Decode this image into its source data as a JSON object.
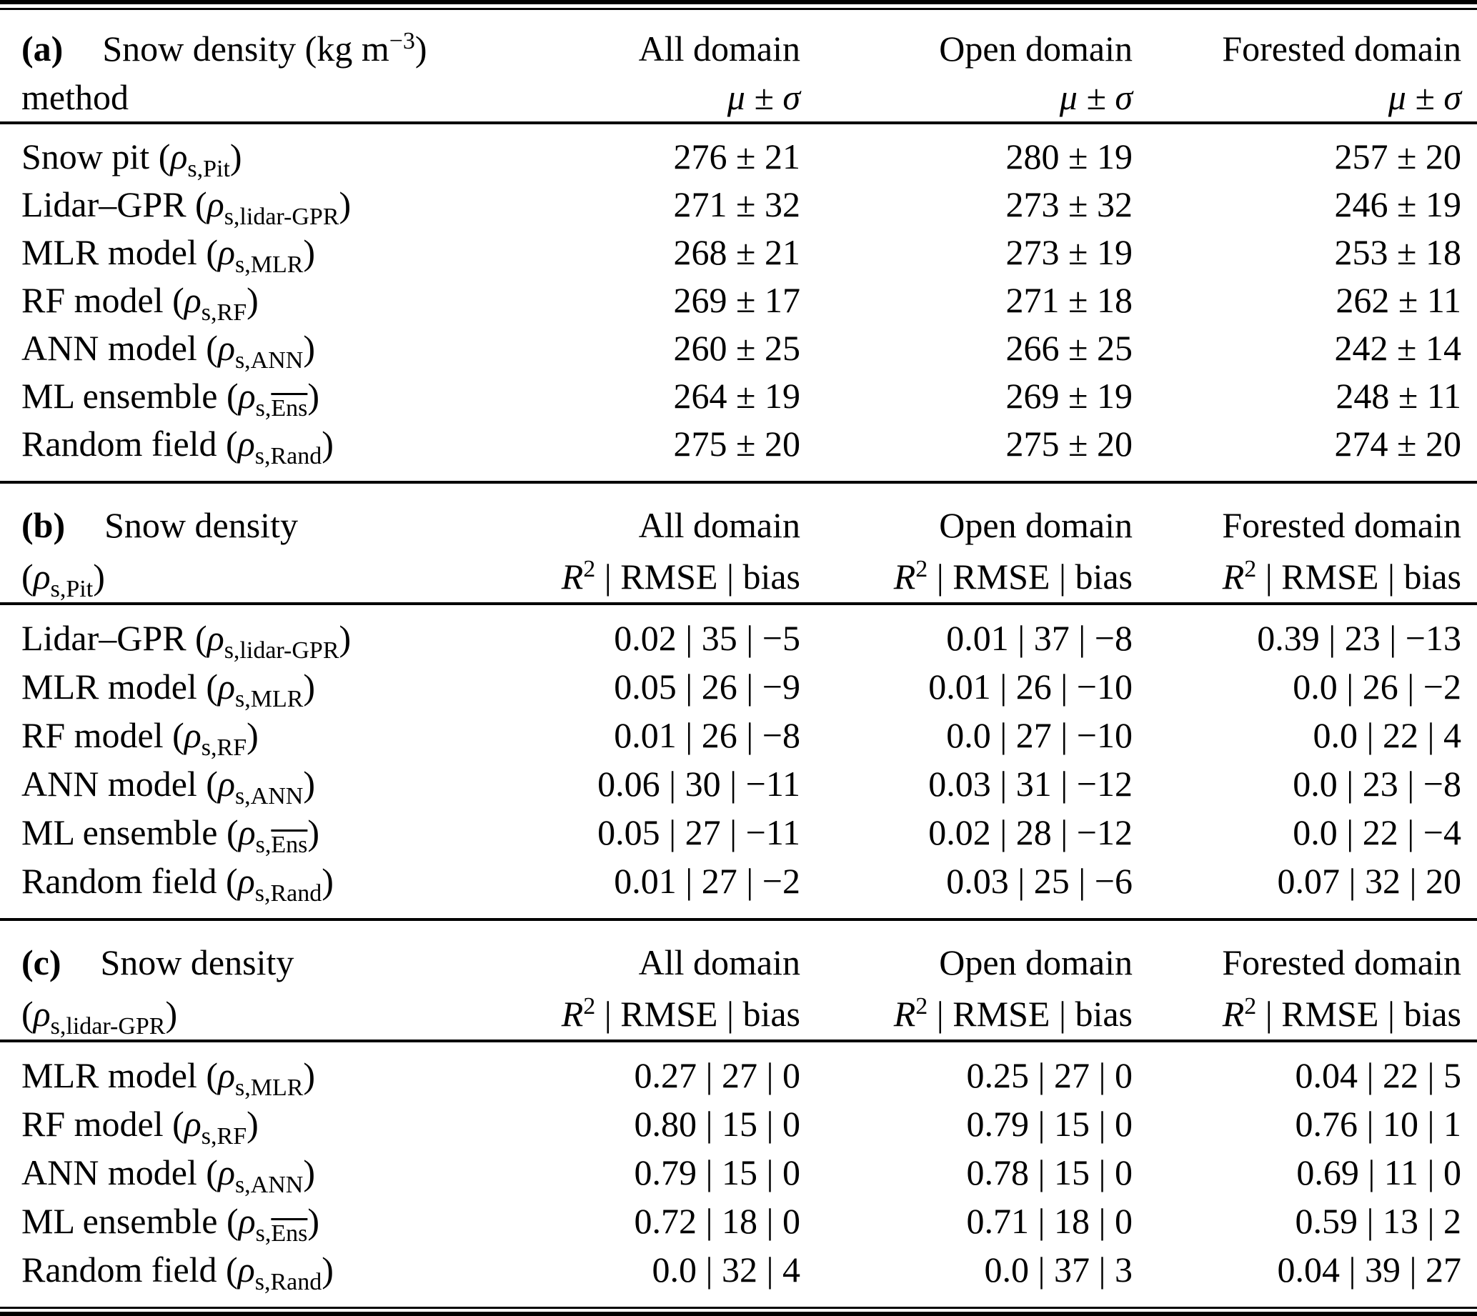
{
  "sections": [
    {
      "tag": "(a)",
      "title_pre": "Snow density (kg m",
      "title_sup": "−3",
      "title_post": ")",
      "sub_label": "method",
      "columns": [
        "All domain",
        "Open domain",
        "Forested domain"
      ],
      "metric": "μ ± σ",
      "rows": [
        {
          "name": "Snow pit (",
          "rho": "ρ",
          "sub": "s,Pit",
          "sub_ol": "",
          "close": ")",
          "values": [
            "276 ± 21",
            "280 ± 19",
            "257 ± 20"
          ]
        },
        {
          "name": "Lidar–GPR (",
          "rho": "ρ",
          "sub": "s,lidar-GPR",
          "sub_ol": "",
          "close": ")",
          "values": [
            "271 ± 32",
            "273 ± 32",
            "246 ± 19"
          ]
        },
        {
          "name": "MLR model (",
          "rho": "ρ",
          "sub": "s,MLR",
          "sub_ol": "",
          "close": ")",
          "values": [
            "268 ± 21",
            "273 ± 19",
            "253 ± 18"
          ]
        },
        {
          "name": "RF model (",
          "rho": "ρ",
          "sub": "s,RF",
          "sub_ol": "",
          "close": ")",
          "values": [
            "269 ± 17",
            "271 ± 18",
            "262 ± 11"
          ]
        },
        {
          "name": "ANN model (",
          "rho": "ρ",
          "sub": "s,ANN",
          "sub_ol": "",
          "close": ")",
          "values": [
            "260 ± 25",
            "266 ± 25",
            "242 ± 14"
          ]
        },
        {
          "name": "ML ensemble (",
          "rho": "ρ",
          "sub": "s,",
          "sub_ol": "Ens",
          "close": ")",
          "values": [
            "264 ± 19",
            "269 ± 19",
            "248 ± 11"
          ]
        },
        {
          "name": "Random field (",
          "rho": "ρ",
          "sub": "s,Rand",
          "sub_ol": "",
          "close": ")",
          "values": [
            "275 ± 20",
            "275 ± 20",
            "274 ± 20"
          ]
        }
      ]
    },
    {
      "tag": "(b)",
      "title_pre": "Snow density",
      "sub_open": "(",
      "rho": "ρ",
      "sub": "s,Pit",
      "sub_close": ")",
      "columns": [
        "All domain",
        "Open domain",
        "Forested domain"
      ],
      "metric_R": "R",
      "metric_exp": "2",
      "metric_rest": " | RMSE | bias",
      "rows": [
        {
          "name": "Lidar–GPR (",
          "rho": "ρ",
          "sub": "s,lidar-GPR",
          "sub_ol": "",
          "close": ")",
          "values": [
            "0.02 | 35 | −5",
            "0.01 | 37 | −8",
            "0.39 | 23 | −13"
          ]
        },
        {
          "name": "MLR model (",
          "rho": "ρ",
          "sub": "s,MLR",
          "sub_ol": "",
          "close": ")",
          "values": [
            "0.05 | 26 | −9",
            "0.01 | 26 | −10",
            "0.0 | 26 | −2"
          ]
        },
        {
          "name": "RF model (",
          "rho": "ρ",
          "sub": "s,RF",
          "sub_ol": "",
          "close": ")",
          "values": [
            "0.01 | 26 | −8",
            "0.0 | 27 | −10",
            "0.0 | 22 | 4"
          ]
        },
        {
          "name": "ANN model (",
          "rho": "ρ",
          "sub": "s,ANN",
          "sub_ol": "",
          "close": ")",
          "values": [
            "0.06 | 30 | −11",
            "0.03 | 31 | −12",
            "0.0 | 23 | −8"
          ]
        },
        {
          "name": "ML ensemble (",
          "rho": "ρ",
          "sub": "s,",
          "sub_ol": "Ens",
          "close": ")",
          "values": [
            "0.05 | 27 | −11",
            "0.02 | 28 | −12",
            "0.0 | 22 | −4"
          ]
        },
        {
          "name": "Random field (",
          "rho": "ρ",
          "sub": "s,Rand",
          "sub_ol": "",
          "close": ")",
          "values": [
            "0.01 | 27 | −2",
            "0.03 | 25 | −6",
            "0.07 | 32 | 20"
          ]
        }
      ]
    },
    {
      "tag": "(c)",
      "title_pre": "Snow density",
      "sub_open": "(",
      "rho": "ρ",
      "sub": "s,lidar-GPR",
      "sub_close": ")",
      "columns": [
        "All domain",
        "Open domain",
        "Forested domain"
      ],
      "metric_R": "R",
      "metric_exp": "2",
      "metric_rest": " | RMSE | bias",
      "rows": [
        {
          "name": "MLR model (",
          "rho": "ρ",
          "sub": "s,MLR",
          "sub_ol": "",
          "close": ")",
          "values": [
            "0.27 | 27 | 0",
            "0.25 | 27 | 0",
            "0.04 | 22 | 5"
          ]
        },
        {
          "name": "RF model (",
          "rho": "ρ",
          "sub": "s,RF",
          "sub_ol": "",
          "close": ")",
          "values": [
            "0.80 | 15 | 0",
            "0.79 | 15 | 0",
            "0.76 | 10 | 1"
          ]
        },
        {
          "name": "ANN model (",
          "rho": "ρ",
          "sub": "s,ANN",
          "sub_ol": "",
          "close": ")",
          "values": [
            "0.79 | 15 | 0",
            "0.78 | 15 | 0",
            "0.69 | 11 | 0"
          ]
        },
        {
          "name": "ML ensemble (",
          "rho": "ρ",
          "sub": "s,",
          "sub_ol": "Ens",
          "close": ")",
          "values": [
            "0.72 | 18 | 0",
            "0.71 | 18 | 0",
            "0.59 | 13 | 2"
          ]
        },
        {
          "name": "Random field (",
          "rho": "ρ",
          "sub": "s,Rand",
          "sub_ol": "",
          "close": ")",
          "values": [
            "0.0 | 32 | 4",
            "0.0 | 37 | 3",
            "0.04 | 39 | 27"
          ]
        }
      ]
    }
  ]
}
